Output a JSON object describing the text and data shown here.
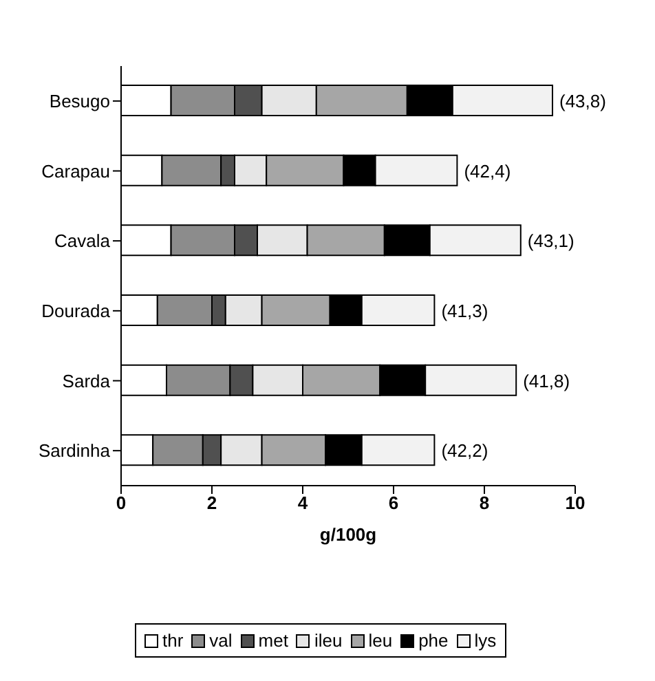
{
  "chart_data": {
    "type": "bar",
    "orientation": "horizontal",
    "stacked": true,
    "xlabel": "g/100g",
    "categories": [
      "Besugo",
      "Carapau",
      "Cavala",
      "Dourada",
      "Sarda",
      "Sardinha"
    ],
    "series": [
      {
        "name": "thr",
        "color": "#ffffff",
        "values": [
          1.1,
          0.9,
          1.1,
          0.8,
          1.0,
          0.7
        ]
      },
      {
        "name": "val",
        "color": "#8c8c8c",
        "values": [
          1.4,
          1.3,
          1.4,
          1.2,
          1.4,
          1.1
        ]
      },
      {
        "name": "met",
        "color": "#505050",
        "values": [
          0.6,
          0.3,
          0.5,
          0.3,
          0.5,
          0.4
        ]
      },
      {
        "name": "ileu",
        "color": "#e6e6e6",
        "values": [
          1.2,
          0.7,
          1.1,
          0.8,
          1.1,
          0.9
        ]
      },
      {
        "name": "leu",
        "color": "#a6a6a6",
        "values": [
          2.0,
          1.7,
          1.7,
          1.5,
          1.7,
          1.4
        ]
      },
      {
        "name": "phe",
        "color": "#000000",
        "values": [
          1.0,
          0.7,
          1.0,
          0.7,
          1.0,
          0.8
        ]
      },
      {
        "name": "lys",
        "color": "#f2f2f2",
        "values": [
          2.2,
          1.8,
          2.0,
          1.6,
          2.0,
          1.6
        ]
      }
    ],
    "xlim": [
      0,
      10
    ],
    "xticks": [
      0,
      2,
      4,
      6,
      8,
      10
    ],
    "grid": false,
    "legend": "bottom",
    "annotations": [
      {
        "text": "(43,8)",
        "x": 9.5,
        "y": "Besugo"
      },
      {
        "text": "(42,4)",
        "x": 7.4,
        "y": "Carapau"
      },
      {
        "text": "(43,1)",
        "x": 8.8,
        "y": "Cavala"
      },
      {
        "text": "(41,3)",
        "x": 6.9,
        "y": "Dourada"
      },
      {
        "text": "(41,8)",
        "x": 8.7,
        "y": "Sarda"
      },
      {
        "text": "(42,2)",
        "x": 6.9,
        "y": "Sardinha"
      }
    ]
  }
}
